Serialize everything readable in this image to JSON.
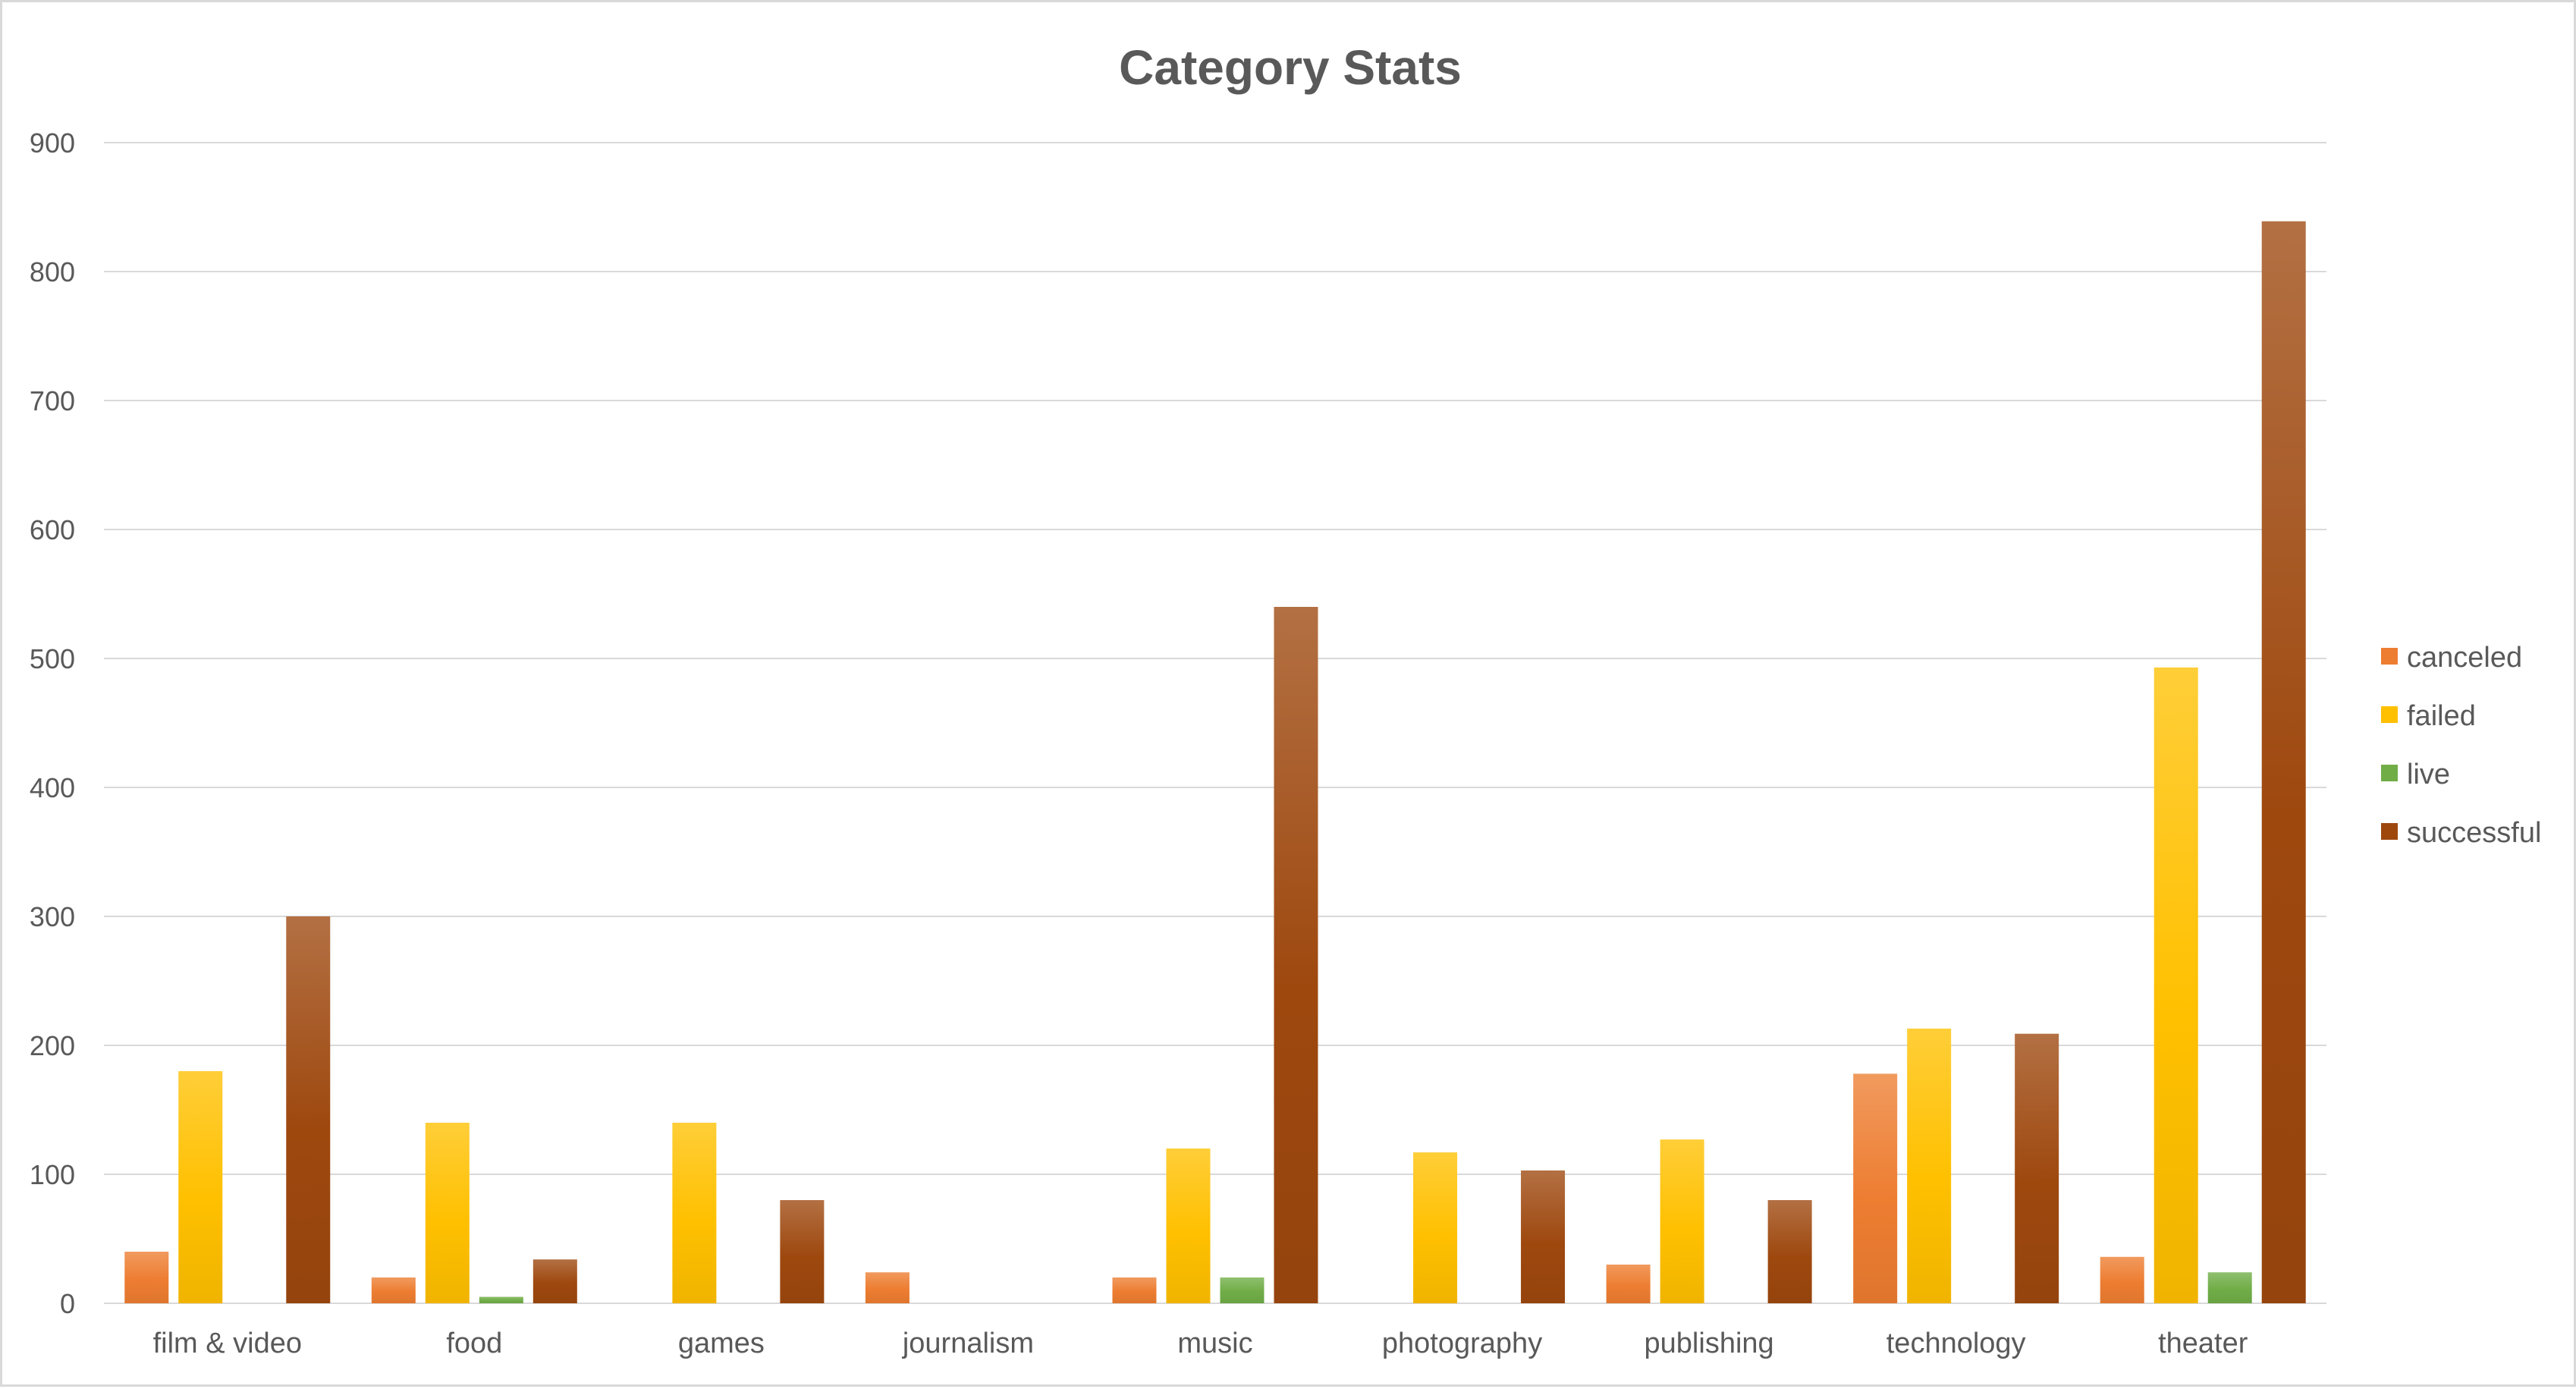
{
  "chart_data": {
    "type": "bar",
    "title": "Category Stats",
    "xlabel": "",
    "ylabel": "",
    "ylim": [
      0,
      900
    ],
    "y_ticks": [
      0,
      100,
      200,
      300,
      400,
      500,
      600,
      700,
      800,
      900
    ],
    "grid": true,
    "legend_position": "right",
    "categories": [
      "film & video",
      "food",
      "games",
      "journalism",
      "music",
      "photography",
      "publishing",
      "technology",
      "theater"
    ],
    "series": [
      {
        "name": "canceled",
        "color": "#ED7D31",
        "values": [
          40,
          20,
          0,
          24,
          20,
          0,
          30,
          178,
          36
        ]
      },
      {
        "name": "failed",
        "color": "#FFC000",
        "values": [
          180,
          140,
          140,
          0,
          120,
          117,
          127,
          213,
          493
        ]
      },
      {
        "name": "live",
        "color": "#70AD47",
        "values": [
          0,
          5,
          0,
          0,
          20,
          0,
          0,
          0,
          24
        ]
      },
      {
        "name": "successful",
        "color": "#9E480E",
        "values": [
          300,
          34,
          80,
          0,
          540,
          103,
          80,
          209,
          839
        ]
      }
    ]
  }
}
